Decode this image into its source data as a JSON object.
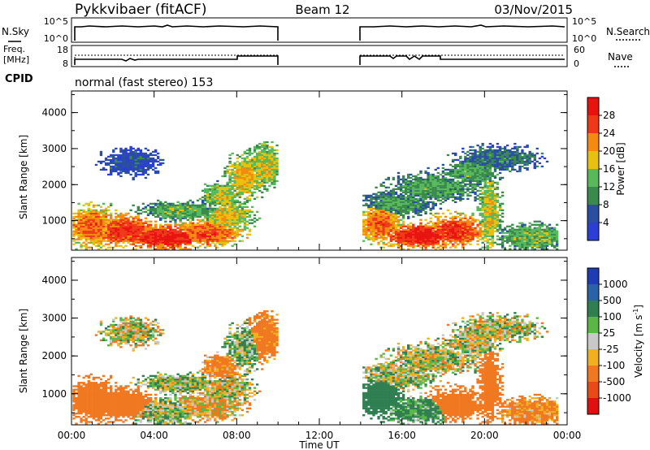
{
  "header": {
    "station": "Pykkvibaer (fitACF)",
    "beam": "Beam 12",
    "date": "03/Nov/2015"
  },
  "noise_panel": {
    "left_label": "N.Sky",
    "right_label": "N.Search",
    "left_ticks": [
      "10^5",
      "10^0"
    ],
    "right_ticks": [
      "10^5",
      "10^0"
    ]
  },
  "freq_panel": {
    "left_label_1": "Freq.",
    "left_label_2": "[MHz]",
    "right_label": "Nave",
    "left_ticks": [
      "18",
      "8"
    ],
    "right_ticks": [
      "60",
      "0"
    ]
  },
  "cpid_panel": {
    "label": "CPID",
    "text": "normal (fast stereo) 153"
  },
  "power_panel": {
    "ylabel": "Slant Range [km]",
    "colorbar_label": "Power [dB]",
    "colorbar_ticks": [
      "28",
      "24",
      "20",
      "16",
      "12",
      "8",
      "4"
    ],
    "colors": [
      "#2b3fd6",
      "#2b4fa0",
      "#3a8a4e",
      "#58b85a",
      "#e8c010",
      "#f48a10",
      "#ee3818",
      "#e8130f"
    ]
  },
  "velocity_panel": {
    "ylabel": "Slant Range [km]",
    "colorbar_label": "Velocity [m s",
    "colorbar_sup": "-1",
    "colorbar_label_end": "]",
    "colorbar_ticks": [
      "1000",
      "500",
      "100",
      "25",
      "-25",
      "-100",
      "-500",
      "-1000"
    ],
    "colors": [
      "#1e3cb4",
      "#2a62a8",
      "#2f7f52",
      "#5ab646",
      "#c8c8c8",
      "#f0b020",
      "#f07820",
      "#e84a18",
      "#e01010"
    ]
  },
  "axes": {
    "xlabel": "Time UT",
    "xticks": [
      "00:00",
      "04:00",
      "08:00",
      "12:00",
      "16:00",
      "20:00",
      "00:00"
    ],
    "yticks": [
      "4000",
      "3000",
      "2000",
      "1000"
    ]
  },
  "chart_data": {
    "type": "heatmap",
    "title": "Pykkvibaer (fitACF)",
    "xlabel": "Time UT",
    "ylabel": "Slant Range [km]",
    "x_range_hours": [
      0,
      24
    ],
    "y_range_km": [
      180,
      4600
    ],
    "data_gaps_hours": [
      [
        10.0,
        14.0
      ]
    ],
    "series": [
      {
        "name": "Power [dB]",
        "range": [
          0,
          32
        ],
        "colorbar_ticks": [
          4,
          8,
          12,
          16,
          20,
          24,
          28
        ]
      },
      {
        "name": "Velocity [m s-1]",
        "range": [
          -1000,
          1000
        ],
        "colorbar_ticks": [
          1000,
          500,
          100,
          25,
          -25,
          -100,
          -500,
          -1000
        ]
      }
    ],
    "frequency_mhz": [
      {
        "from": 0,
        "to": 8,
        "value": 10.5
      },
      {
        "from": 8,
        "to": 10,
        "value": 12.5
      },
      {
        "from": 14,
        "to": 18,
        "value": 12.5
      },
      {
        "from": 18,
        "to": 24,
        "value": 10.5
      }
    ]
  }
}
